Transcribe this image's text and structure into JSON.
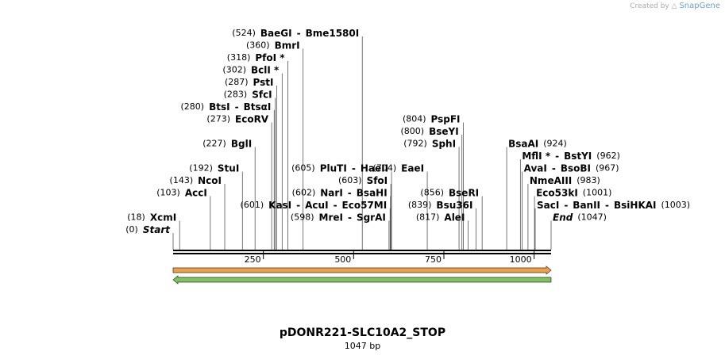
{
  "watermark": {
    "created_by": "Created by",
    "brand": "SnapGene"
  },
  "map": {
    "name": "pDONR221-SLC10A2_STOP",
    "length_label": "1047 bp",
    "length": 1047,
    "ticks": [
      {
        "pos": 250,
        "label": "250"
      },
      {
        "pos": 500,
        "label": "500"
      },
      {
        "pos": 750,
        "label": "750"
      },
      {
        "pos": 1000,
        "label": "1000"
      }
    ],
    "features": [
      {
        "name": "forward-arrow",
        "color": "#f0a040",
        "direction": "forward"
      },
      {
        "name": "reverse-arrow",
        "color": "#7dc45a",
        "direction": "reverse"
      }
    ],
    "sites": [
      {
        "label": "(524)  BaeGI   - Bme1580I",
        "parts": [
          {
            "t": "(524)",
            "c": "pos"
          },
          {
            "t": "BaeGI",
            "c": "enz"
          },
          {
            "t": "-",
            "c": "enz"
          },
          {
            "t": "Bme1580I",
            "c": "enz"
          }
        ],
        "bp": 524,
        "row": 0,
        "side": "left"
      },
      {
        "parts": [
          {
            "t": "(360)",
            "c": "pos"
          },
          {
            "t": "BmrI",
            "c": "enz"
          }
        ],
        "bp": 360,
        "row": 1,
        "side": "left"
      },
      {
        "parts": [
          {
            "t": "(318)",
            "c": "pos"
          },
          {
            "t": "PfoI *",
            "c": "enz"
          }
        ],
        "bp": 318,
        "row": 2,
        "side": "left"
      },
      {
        "parts": [
          {
            "t": "(302)",
            "c": "pos"
          },
          {
            "t": "BclI *",
            "c": "enz"
          }
        ],
        "bp": 302,
        "row": 3,
        "side": "left"
      },
      {
        "parts": [
          {
            "t": "(287)",
            "c": "pos"
          },
          {
            "t": "PstI",
            "c": "enz"
          }
        ],
        "bp": 287,
        "row": 4,
        "side": "left"
      },
      {
        "parts": [
          {
            "t": "(283)",
            "c": "pos"
          },
          {
            "t": "SfcI",
            "c": "enz"
          }
        ],
        "bp": 283,
        "row": 5,
        "side": "left"
      },
      {
        "parts": [
          {
            "t": "(280)",
            "c": "pos"
          },
          {
            "t": "BtsI",
            "c": "enz"
          },
          {
            "t": "-",
            "c": "enz"
          },
          {
            "t": "BtsαI",
            "c": "enz"
          }
        ],
        "bp": 280,
        "row": 6,
        "side": "left"
      },
      {
        "parts": [
          {
            "t": "(273)",
            "c": "pos"
          },
          {
            "t": "EcoRV",
            "c": "enz"
          }
        ],
        "bp": 273,
        "row": 7,
        "side": "left"
      },
      {
        "parts": [
          {
            "t": "(227)",
            "c": "pos"
          },
          {
            "t": "BglI",
            "c": "enz"
          }
        ],
        "bp": 227,
        "row": 9,
        "side": "left"
      },
      {
        "parts": [
          {
            "t": "(192)",
            "c": "pos"
          },
          {
            "t": "StuI",
            "c": "enz"
          }
        ],
        "bp": 192,
        "row": 11,
        "side": "left"
      },
      {
        "parts": [
          {
            "t": "(143)",
            "c": "pos"
          },
          {
            "t": "NcoI",
            "c": "enz"
          }
        ],
        "bp": 143,
        "row": 12,
        "side": "left"
      },
      {
        "parts": [
          {
            "t": "(103)",
            "c": "pos"
          },
          {
            "t": "AccI",
            "c": "enz"
          }
        ],
        "bp": 103,
        "row": 13,
        "side": "left"
      },
      {
        "parts": [
          {
            "t": "(18)",
            "c": "pos"
          },
          {
            "t": "XcmI",
            "c": "enz"
          }
        ],
        "bp": 18,
        "row": 15,
        "side": "left"
      },
      {
        "parts": [
          {
            "t": "(0)",
            "c": "pos"
          },
          {
            "t": "Start",
            "c": "enz ital"
          }
        ],
        "bp": 0,
        "row": 16,
        "side": "left"
      },
      {
        "parts": [
          {
            "t": "(605)",
            "c": "pos"
          },
          {
            "t": "PluTI",
            "c": "enz"
          },
          {
            "t": "-",
            "c": "enz"
          },
          {
            "t": "HaeII",
            "c": "enz"
          }
        ],
        "bp": 605,
        "row": 11,
        "side": "left"
      },
      {
        "parts": [
          {
            "t": "(603)",
            "c": "pos"
          },
          {
            "t": "SfoI",
            "c": "enz"
          }
        ],
        "bp": 603,
        "row": 12,
        "side": "left"
      },
      {
        "parts": [
          {
            "t": "(602)",
            "c": "pos"
          },
          {
            "t": "NarI",
            "c": "enz"
          },
          {
            "t": "-",
            "c": "enz"
          },
          {
            "t": "BsaHI",
            "c": "enz"
          }
        ],
        "bp": 602,
        "row": 13,
        "side": "left"
      },
      {
        "parts": [
          {
            "t": "(601)",
            "c": "pos"
          },
          {
            "t": "KasI",
            "c": "enz"
          },
          {
            "t": "-",
            "c": "enz"
          },
          {
            "t": "AcuI",
            "c": "enz"
          },
          {
            "t": "-",
            "c": "enz"
          },
          {
            "t": "Eco57MI",
            "c": "enz"
          }
        ],
        "bp": 601,
        "row": 14,
        "side": "left"
      },
      {
        "parts": [
          {
            "t": "(598)",
            "c": "pos"
          },
          {
            "t": "MreI",
            "c": "enz"
          },
          {
            "t": "-",
            "c": "enz"
          },
          {
            "t": "SgrAI",
            "c": "enz"
          }
        ],
        "bp": 598,
        "row": 15,
        "side": "left"
      },
      {
        "parts": [
          {
            "t": "(804)",
            "c": "pos"
          },
          {
            "t": "PspFI",
            "c": "enz"
          }
        ],
        "bp": 804,
        "row": 7,
        "side": "left"
      },
      {
        "parts": [
          {
            "t": "(800)",
            "c": "pos"
          },
          {
            "t": "BseYI",
            "c": "enz"
          }
        ],
        "bp": 800,
        "row": 8,
        "side": "left"
      },
      {
        "parts": [
          {
            "t": "(792)",
            "c": "pos"
          },
          {
            "t": "SphI",
            "c": "enz"
          }
        ],
        "bp": 792,
        "row": 9,
        "side": "left"
      },
      {
        "parts": [
          {
            "t": "(704)",
            "c": "pos"
          },
          {
            "t": "EaeI",
            "c": "enz"
          }
        ],
        "bp": 704,
        "row": 11,
        "side": "left"
      },
      {
        "parts": [
          {
            "t": "(856)",
            "c": "pos"
          },
          {
            "t": "BseRI",
            "c": "enz"
          }
        ],
        "bp": 856,
        "row": 13,
        "side": "left"
      },
      {
        "parts": [
          {
            "t": "(839)",
            "c": "pos"
          },
          {
            "t": "Bsu36I",
            "c": "enz"
          }
        ],
        "bp": 839,
        "row": 14,
        "side": "left"
      },
      {
        "parts": [
          {
            "t": "(817)",
            "c": "pos"
          },
          {
            "t": "AleI",
            "c": "enz"
          }
        ],
        "bp": 817,
        "row": 15,
        "side": "left"
      },
      {
        "parts": [
          {
            "t": "BsaAI",
            "c": "enz"
          },
          {
            "t": "(924)",
            "c": "pos"
          }
        ],
        "bp": 924,
        "row": 9,
        "side": "right"
      },
      {
        "parts": [
          {
            "t": "MflI *",
            "c": "enz"
          },
          {
            "t": "-",
            "c": "enz"
          },
          {
            "t": "BstYI",
            "c": "enz"
          },
          {
            "t": "(962)",
            "c": "pos"
          }
        ],
        "bp": 962,
        "row": 10,
        "side": "right"
      },
      {
        "parts": [
          {
            "t": "AvaI",
            "c": "enz"
          },
          {
            "t": "-",
            "c": "enz"
          },
          {
            "t": "BsoBI",
            "c": "enz"
          },
          {
            "t": "(967)",
            "c": "pos"
          }
        ],
        "bp": 967,
        "row": 11,
        "side": "right"
      },
      {
        "parts": [
          {
            "t": "NmeAIII",
            "c": "enz"
          },
          {
            "t": "(983)",
            "c": "pos"
          }
        ],
        "bp": 983,
        "row": 12,
        "side": "right"
      },
      {
        "parts": [
          {
            "t": "Eco53kI",
            "c": "enz"
          },
          {
            "t": "(1001)",
            "c": "pos"
          }
        ],
        "bp": 1001,
        "row": 13,
        "side": "right"
      },
      {
        "parts": [
          {
            "t": "SacI",
            "c": "enz"
          },
          {
            "t": "-",
            "c": "enz"
          },
          {
            "t": "BanII",
            "c": "enz"
          },
          {
            "t": "-",
            "c": "enz"
          },
          {
            "t": "BsiHKAI",
            "c": "enz"
          },
          {
            "t": "(1003)",
            "c": "pos"
          }
        ],
        "bp": 1003,
        "row": 14,
        "side": "right"
      },
      {
        "parts": [
          {
            "t": "End",
            "c": "enz ital"
          },
          {
            "t": "(1047)",
            "c": "pos"
          }
        ],
        "bp": 1047,
        "row": 15,
        "side": "right"
      }
    ]
  }
}
